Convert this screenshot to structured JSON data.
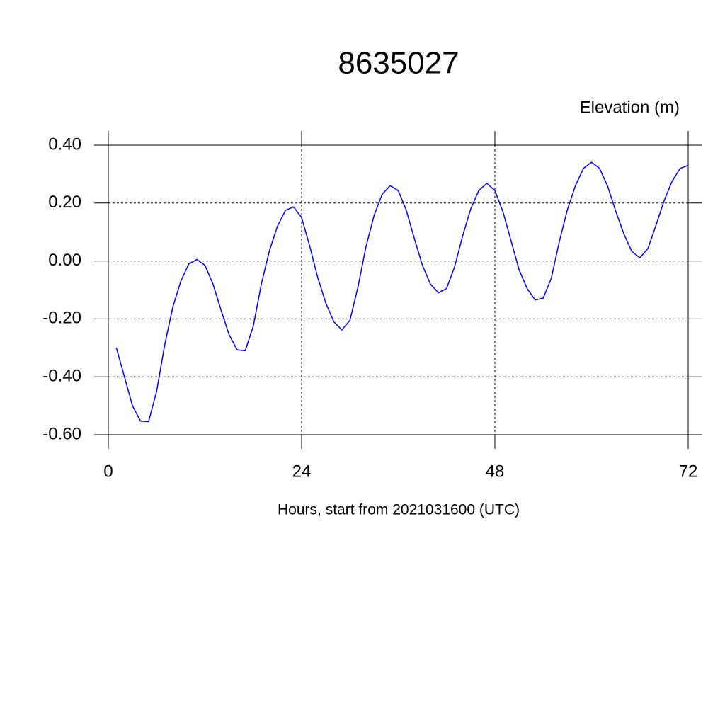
{
  "chart_data": {
    "type": "line",
    "title": "8635027",
    "ylabel": "Elevation (m)",
    "xlabel": "Hours, start from 2021031600 (UTC)",
    "x": [
      1,
      2,
      3,
      4,
      5,
      6,
      7,
      8,
      9,
      10,
      11,
      12,
      13,
      14,
      15,
      16,
      17,
      18,
      19,
      20,
      21,
      22,
      23,
      24,
      25,
      26,
      27,
      28,
      29,
      30,
      31,
      32,
      33,
      34,
      35,
      36,
      37,
      38,
      39,
      40,
      41,
      42,
      43,
      44,
      45,
      46,
      47,
      48,
      49,
      50,
      51,
      52,
      53,
      54,
      55,
      56,
      57,
      58,
      59,
      60,
      61,
      62,
      63,
      64,
      65,
      66,
      67,
      68,
      69,
      70,
      71,
      72
    ],
    "series": [
      {
        "color": "#0000ff",
        "values": [
          -0.3,
          -0.4,
          -0.5,
          -0.553,
          -0.555,
          -0.45,
          -0.29,
          -0.16,
          -0.07,
          -0.01,
          0.005,
          -0.015,
          -0.08,
          -0.17,
          -0.255,
          -0.307,
          -0.31,
          -0.225,
          -0.08,
          0.035,
          0.12,
          0.175,
          0.187,
          0.15,
          0.052,
          -0.057,
          -0.145,
          -0.21,
          -0.238,
          -0.205,
          -0.09,
          0.05,
          0.157,
          0.23,
          0.26,
          0.243,
          0.175,
          0.077,
          -0.015,
          -0.08,
          -0.11,
          -0.095,
          -0.02,
          0.087,
          0.18,
          0.243,
          0.268,
          0.243,
          0.17,
          0.07,
          -0.03,
          -0.095,
          -0.135,
          -0.128,
          -0.06,
          0.067,
          0.177,
          0.26,
          0.32,
          0.341,
          0.32,
          0.258,
          0.172,
          0.094,
          0.033,
          0.011,
          0.043,
          0.123,
          0.207,
          0.275,
          0.32,
          0.33
        ]
      }
    ],
    "xlim": [
      0,
      72
    ],
    "xticks": [
      0,
      24,
      48,
      72
    ],
    "ylim": [
      -0.6,
      0.4
    ],
    "yticks": [
      {
        "value": -0.6,
        "label": "-0.60"
      },
      {
        "value": -0.4,
        "label": "-0.40"
      },
      {
        "value": -0.2,
        "label": "-0.20"
      },
      {
        "value": 0,
        "label": "0.00"
      },
      {
        "value": 0.2,
        "label": "0.20"
      },
      {
        "value": 0.4,
        "label": "0.40"
      }
    ],
    "grid": true
  }
}
